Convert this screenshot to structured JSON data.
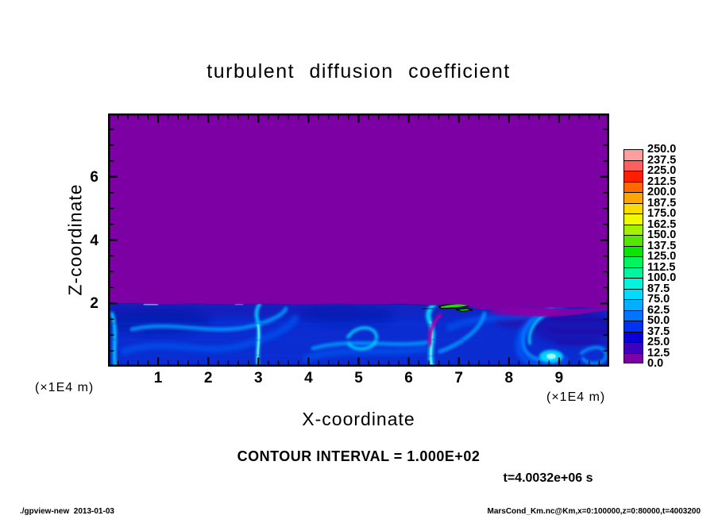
{
  "page": {
    "footer_left": "./gpview-new  2013-01-03",
    "footer_right": "MarsCond_Km.nc@Km,x=0:100000,z=0:80000,t=4003200"
  },
  "chart_data": {
    "type": "heatmap",
    "title": "turbulent diffusion coefficient",
    "xlabel": "X-coordinate",
    "ylabel": "Z-coordinate",
    "x_unit_label": "(×1E4 m)",
    "y_unit_label": "(×1E4 m)",
    "xlim": [
      0,
      10
    ],
    "ylim": [
      0,
      8
    ],
    "x_major_ticks": [
      1,
      2,
      3,
      4,
      5,
      6,
      7,
      8,
      9
    ],
    "x_minor_step": 0.2,
    "y_major_ticks": [
      2,
      4,
      6
    ],
    "y_minor_step": 0.5,
    "contour_interval_label": "CONTOUR INTERVAL = 1.000E+02",
    "time_label": "t=4.0032e+06 s",
    "grid": false,
    "legend_position": "right-colorbar",
    "colorbar": {
      "levels": [
        0.0,
        12.5,
        25.0,
        37.5,
        50.0,
        62.5,
        75.0,
        87.5,
        100.0,
        112.5,
        125.0,
        137.5,
        150.0,
        162.5,
        175.0,
        187.5,
        200.0,
        212.5,
        225.0,
        237.5,
        250.0
      ],
      "colors": [
        "#7D00A5",
        "#3C00BE",
        "#0A00DC",
        "#0032F5",
        "#0073FF",
        "#00AFFF",
        "#00DCFF",
        "#00F5DC",
        "#00F5A0",
        "#00F55F",
        "#0AE600",
        "#55E600",
        "#A5F000",
        "#F0FA00",
        "#FFDC00",
        "#FFA500",
        "#FF6900",
        "#FF1E00",
        "#FF5F5F",
        "#FF9E9E"
      ]
    },
    "field_colors": {
      "background": "#7D00A5",
      "layer_base": "#0A2CD0"
    },
    "field_description": "Value ~0 (purple) everywhere above z~2e4 m; turbulent boundary layer below z~2e4 m with eddies mostly 12.5-100, small patch >125 (green, outlined by 100-contour) near x~7e4 m at layer top; purple intrusions near layer top for x>6.5e4 m."
  }
}
